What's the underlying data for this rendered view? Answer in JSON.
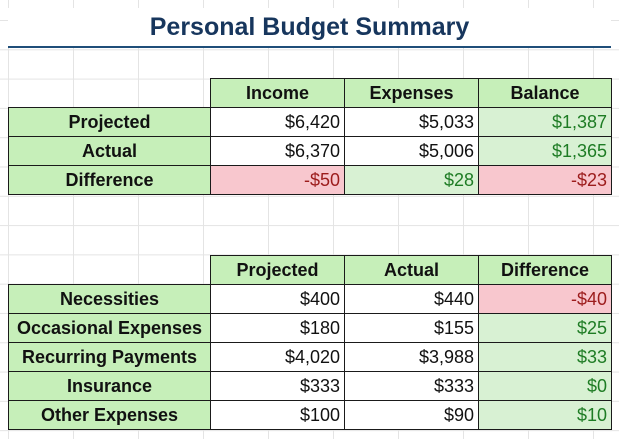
{
  "title": "Personal Budget Summary",
  "summary": {
    "headers": [
      "Income",
      "Expenses",
      "Balance"
    ],
    "rows": [
      {
        "label": "Projected",
        "income": "$6,420",
        "expenses": "$5,033",
        "balance": "$1,387"
      },
      {
        "label": "Actual",
        "income": "$6,370",
        "expenses": "$5,006",
        "balance": "$1,365"
      },
      {
        "label": "Difference",
        "income": "-$50",
        "expenses": "$28",
        "balance": "-$23"
      }
    ]
  },
  "categories": {
    "headers": [
      "Projected",
      "Actual",
      "Difference"
    ],
    "rows": [
      {
        "label": "Necessities",
        "projected": "$400",
        "actual": "$440",
        "difference": "-$40"
      },
      {
        "label": "Occasional Expenses",
        "projected": "$180",
        "actual": "$155",
        "difference": "$25"
      },
      {
        "label": "Recurring Payments",
        "projected": "$4,020",
        "actual": "$3,988",
        "difference": "$33"
      },
      {
        "label": "Insurance",
        "projected": "$333",
        "actual": "$333",
        "difference": "$0"
      },
      {
        "label": "Other Expenses",
        "projected": "$100",
        "actual": "$90",
        "difference": "$10"
      }
    ]
  },
  "colors": {
    "header_fill": "#c6efb9",
    "positive_fill": "#d8f1d3",
    "positive_text": "#1e7c24",
    "negative_fill": "#f8c7ce",
    "negative_text": "#9c1c1c",
    "title_text": "#17365d"
  }
}
